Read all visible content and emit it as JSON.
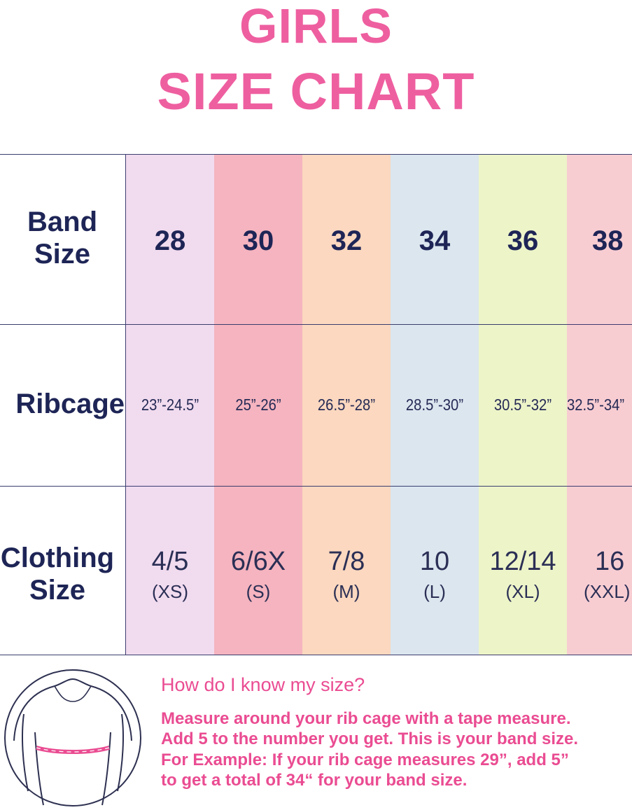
{
  "title": {
    "line1": "GIRLS",
    "line2": "SIZE CHART"
  },
  "table": {
    "row_labels": {
      "band_line1": "Band",
      "band_line2": "Size",
      "ribcage": "Ribcage",
      "clothing_line1": "Clothing",
      "clothing_line2": "Size"
    },
    "columns": [
      {
        "band": "28",
        "ribcage": "23”-24.5”",
        "clothing": "4/5",
        "code": "(XS)",
        "color": "#f1dbef"
      },
      {
        "band": "30",
        "ribcage": "25”-26”",
        "clothing": "6/6X",
        "code": "(S)",
        "color": "#f5b4bf"
      },
      {
        "band": "32",
        "ribcage": "26.5”-28”",
        "clothing": "7/8",
        "code": "(M)",
        "color": "#fbd8bf"
      },
      {
        "band": "34",
        "ribcage": "28.5”-30”",
        "clothing": "10",
        "code": "(L)",
        "color": "#dbe6ef"
      },
      {
        "band": "36",
        "ribcage": "30.5”-32”",
        "clothing": "12/14",
        "code": "(XL)",
        "color": "#edf4c8"
      },
      {
        "band": "38",
        "ribcage": "32.5”-34”",
        "clothing": "16",
        "code": "(XXL)",
        "color": "#f8cdd2"
      }
    ]
  },
  "help": {
    "title": "How do I know my size?",
    "lines": [
      "Measure around your rib cage with a tape measure.",
      "Add 5 to the number you get. This is your band size.",
      "For Example: If your rib cage measures 29”, add 5”",
      "to get a total of 34“ for your band size."
    ]
  },
  "colors": {
    "title_pink": "#ee5fa0",
    "text_navy": "#1e2556",
    "grid_line": "#3a3d6e"
  },
  "icons": {
    "figure": "torso-measurement-illustration"
  }
}
